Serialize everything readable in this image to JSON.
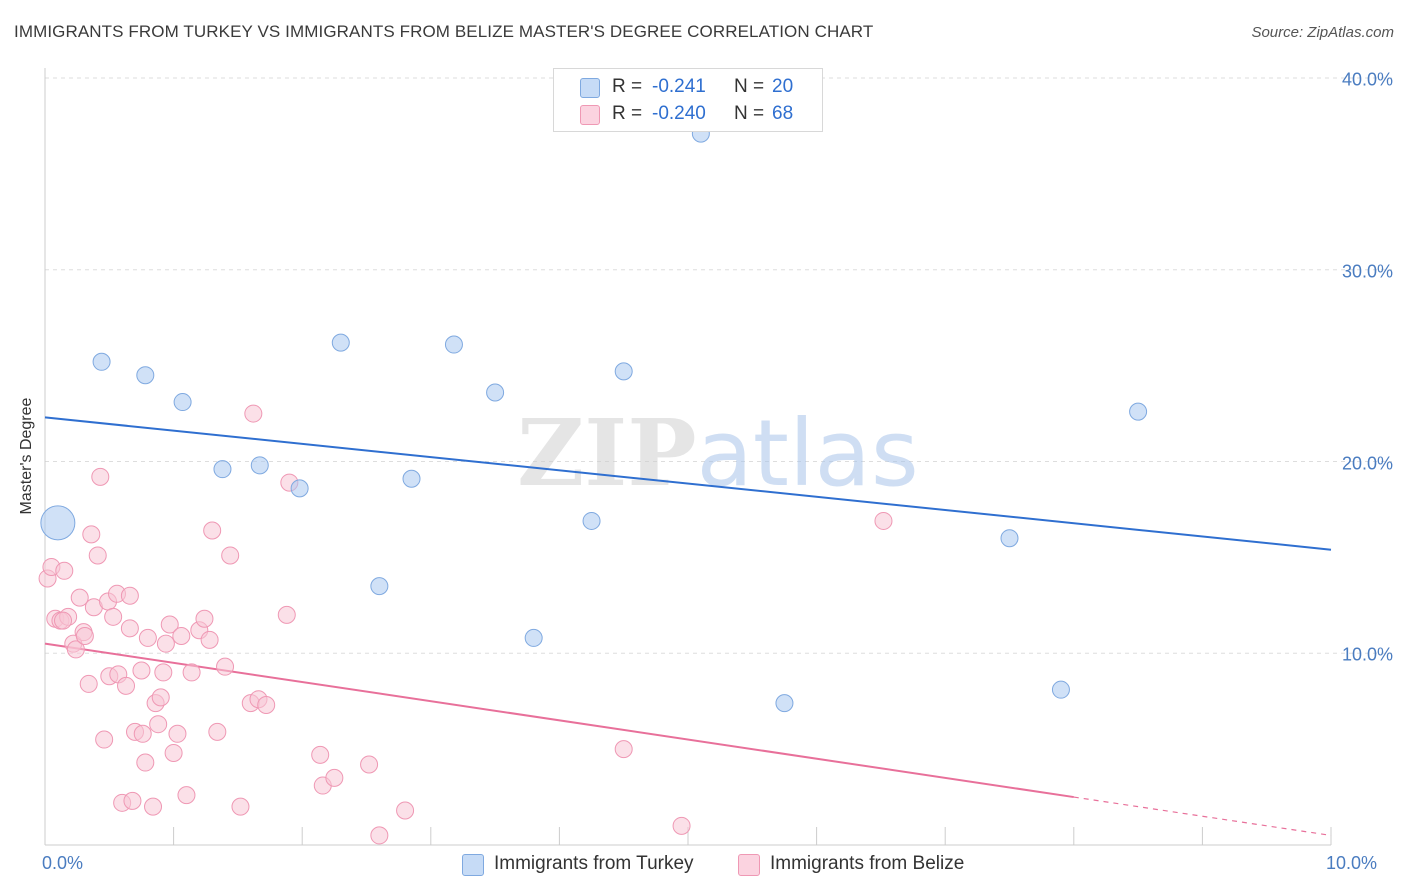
{
  "chart_data": {
    "type": "scatter",
    "title": "IMMIGRANTS FROM TURKEY VS IMMIGRANTS FROM BELIZE MASTER'S DEGREE CORRELATION CHART",
    "source": "Source: ZipAtlas.com",
    "xlabel": "",
    "ylabel": "Master's Degree",
    "xlim": [
      0,
      10
    ],
    "ylim": [
      0,
      40
    ],
    "x_tick_labels": [
      "0.0%",
      "10.0%"
    ],
    "y_ticks": [
      10,
      20,
      30,
      40
    ],
    "y_tick_labels": [
      "10.0%",
      "20.0%",
      "30.0%",
      "40.0%"
    ],
    "grid": true,
    "watermark": "ZIPatlas",
    "stats": [
      {
        "r_label": "R =",
        "r_value": "-0.241",
        "n_label": "N =",
        "n_value": "20"
      },
      {
        "r_label": "R =",
        "r_value": "-0.240",
        "n_label": "N =",
        "n_value": "68"
      }
    ],
    "series": [
      {
        "name": "Immigrants from Turkey",
        "color": "#a9c8f0",
        "stroke": "#7fa9e0",
        "line_color": "#2f6fd0",
        "trend": {
          "x": [
            0,
            10
          ],
          "y": [
            22.3,
            15.4
          ],
          "dashed_from": null
        },
        "points": [
          {
            "x": 0.1,
            "y": 16.8,
            "big": true
          },
          {
            "x": 0.44,
            "y": 25.2
          },
          {
            "x": 0.78,
            "y": 24.5
          },
          {
            "x": 1.07,
            "y": 23.1
          },
          {
            "x": 1.38,
            "y": 19.6
          },
          {
            "x": 1.67,
            "y": 19.8
          },
          {
            "x": 1.98,
            "y": 18.6
          },
          {
            "x": 2.3,
            "y": 26.2
          },
          {
            "x": 2.6,
            "y": 13.5
          },
          {
            "x": 2.85,
            "y": 19.1
          },
          {
            "x": 3.18,
            "y": 26.1
          },
          {
            "x": 3.5,
            "y": 23.6
          },
          {
            "x": 3.8,
            "y": 10.8
          },
          {
            "x": 4.25,
            "y": 16.9
          },
          {
            "x": 4.5,
            "y": 24.7
          },
          {
            "x": 5.1,
            "y": 37.1
          },
          {
            "x": 5.75,
            "y": 7.4
          },
          {
            "x": 7.5,
            "y": 16.0
          },
          {
            "x": 7.9,
            "y": 8.1
          },
          {
            "x": 8.5,
            "y": 22.6
          }
        ]
      },
      {
        "name": "Immigrants from Belize",
        "color": "#f8c6d6",
        "stroke": "#ef98b4",
        "line_color": "#e8709a",
        "trend": {
          "x": [
            0,
            10
          ],
          "y": [
            10.5,
            0.5
          ],
          "dashed_from": 8.0
        },
        "points": [
          {
            "x": 0.02,
            "y": 13.9
          },
          {
            "x": 0.05,
            "y": 14.5
          },
          {
            "x": 0.08,
            "y": 11.8
          },
          {
            "x": 0.12,
            "y": 11.7
          },
          {
            "x": 0.15,
            "y": 14.3
          },
          {
            "x": 0.18,
            "y": 11.9
          },
          {
            "x": 0.22,
            "y": 10.5
          },
          {
            "x": 0.24,
            "y": 10.2
          },
          {
            "x": 0.27,
            "y": 12.9
          },
          {
            "x": 0.3,
            "y": 11.1
          },
          {
            "x": 0.31,
            "y": 10.9
          },
          {
            "x": 0.34,
            "y": 8.4
          },
          {
            "x": 0.36,
            "y": 16.2
          },
          {
            "x": 0.38,
            "y": 12.4
          },
          {
            "x": 0.41,
            "y": 15.1
          },
          {
            "x": 0.43,
            "y": 19.2
          },
          {
            "x": 0.46,
            "y": 5.5
          },
          {
            "x": 0.49,
            "y": 12.7
          },
          {
            "x": 0.5,
            "y": 8.8
          },
          {
            "x": 0.53,
            "y": 11.9
          },
          {
            "x": 0.56,
            "y": 13.1
          },
          {
            "x": 0.57,
            "y": 8.9
          },
          {
            "x": 0.6,
            "y": 2.2
          },
          {
            "x": 0.63,
            "y": 8.3
          },
          {
            "x": 0.66,
            "y": 11.3
          },
          {
            "x": 0.68,
            "y": 2.3
          },
          {
            "x": 0.7,
            "y": 5.9
          },
          {
            "x": 0.75,
            "y": 9.1
          },
          {
            "x": 0.76,
            "y": 5.8
          },
          {
            "x": 0.78,
            "y": 4.3
          },
          {
            "x": 0.8,
            "y": 10.8
          },
          {
            "x": 0.84,
            "y": 2.0
          },
          {
            "x": 0.86,
            "y": 7.4
          },
          {
            "x": 0.88,
            "y": 6.3
          },
          {
            "x": 0.9,
            "y": 7.7
          },
          {
            "x": 0.92,
            "y": 9.0
          },
          {
            "x": 0.94,
            "y": 10.5
          },
          {
            "x": 0.97,
            "y": 11.5
          },
          {
            "x": 1.0,
            "y": 4.8
          },
          {
            "x": 1.03,
            "y": 5.8
          },
          {
            "x": 1.06,
            "y": 10.9
          },
          {
            "x": 1.1,
            "y": 2.6
          },
          {
            "x": 1.14,
            "y": 9.0
          },
          {
            "x": 1.2,
            "y": 11.2
          },
          {
            "x": 1.24,
            "y": 11.8
          },
          {
            "x": 1.28,
            "y": 10.7
          },
          {
            "x": 1.3,
            "y": 16.4
          },
          {
            "x": 1.34,
            "y": 5.9
          },
          {
            "x": 1.4,
            "y": 9.3
          },
          {
            "x": 1.44,
            "y": 15.1
          },
          {
            "x": 1.52,
            "y": 2.0
          },
          {
            "x": 1.6,
            "y": 7.4
          },
          {
            "x": 1.66,
            "y": 7.6
          },
          {
            "x": 1.72,
            "y": 7.3
          },
          {
            "x": 1.62,
            "y": 22.5
          },
          {
            "x": 1.88,
            "y": 12.0
          },
          {
            "x": 1.9,
            "y": 18.9
          },
          {
            "x": 2.14,
            "y": 4.7
          },
          {
            "x": 2.16,
            "y": 3.1
          },
          {
            "x": 2.25,
            "y": 3.5
          },
          {
            "x": 2.52,
            "y": 4.2
          },
          {
            "x": 2.6,
            "y": 0.5
          },
          {
            "x": 2.8,
            "y": 1.8
          },
          {
            "x": 4.5,
            "y": 5.0
          },
          {
            "x": 4.95,
            "y": 1.0
          },
          {
            "x": 6.52,
            "y": 16.9
          },
          {
            "x": 0.66,
            "y": 13.0
          },
          {
            "x": 0.14,
            "y": 11.7
          }
        ]
      }
    ]
  },
  "colors": {
    "axis": "#cccccc",
    "grid": "#dddddd",
    "tick_text": "#4a7cc0",
    "watermark": "#d0d0d0"
  }
}
